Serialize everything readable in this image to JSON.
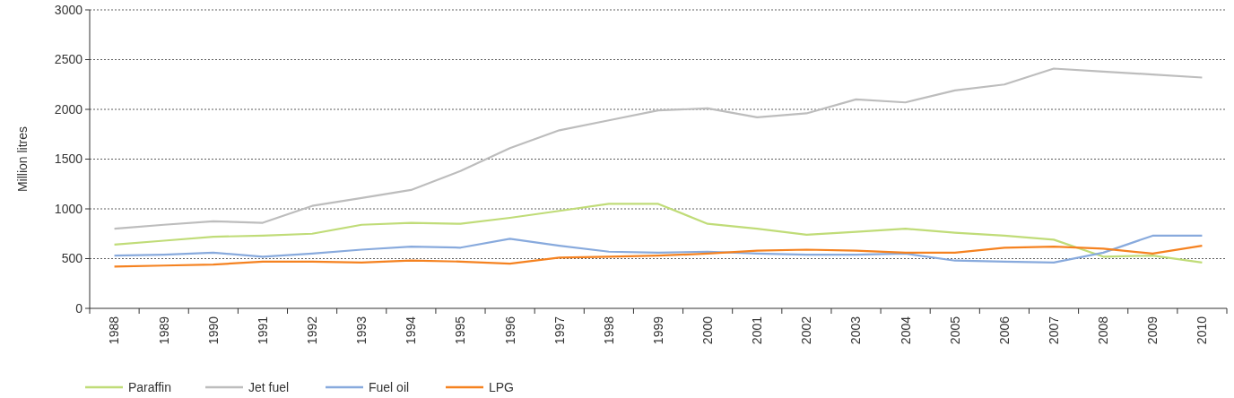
{
  "chart_data": {
    "type": "line",
    "ylabel": "Million litres",
    "categories": [
      "1988",
      "1989",
      "1990",
      "1991",
      "1992",
      "1993",
      "1994",
      "1995",
      "1996",
      "1997",
      "1998",
      "1999",
      "2000",
      "2001",
      "2002",
      "2003",
      "2004",
      "2005",
      "2006",
      "2007",
      "2008",
      "2009",
      "2010"
    ],
    "series": [
      {
        "name": "Paraffin",
        "color": "#c0dc78",
        "values": [
          640,
          680,
          720,
          730,
          750,
          840,
          860,
          850,
          910,
          980,
          1050,
          1050,
          850,
          800,
          740,
          770,
          800,
          760,
          730,
          690,
          520,
          530,
          460
        ]
      },
      {
        "name": "Jet fuel",
        "color": "#bdbdbd",
        "values": [
          800,
          840,
          875,
          860,
          1030,
          1110,
          1190,
          1380,
          1610,
          1790,
          1890,
          1990,
          2010,
          1920,
          1960,
          2100,
          2070,
          2190,
          2250,
          2410,
          2380,
          2350,
          2320
        ]
      },
      {
        "name": "Fuel oil",
        "color": "#88aadd",
        "values": [
          530,
          540,
          560,
          520,
          550,
          590,
          620,
          610,
          700,
          630,
          570,
          560,
          570,
          550,
          540,
          540,
          550,
          480,
          470,
          460,
          560,
          730,
          730
        ]
      },
      {
        "name": "LPG",
        "color": "#f58220",
        "values": [
          420,
          430,
          440,
          470,
          470,
          460,
          480,
          470,
          450,
          510,
          520,
          530,
          550,
          580,
          590,
          580,
          560,
          560,
          610,
          620,
          600,
          550,
          630
        ]
      }
    ],
    "ylim": [
      0,
      3000
    ],
    "yticks": [
      0,
      500,
      1000,
      1500,
      2000,
      2500,
      3000
    ],
    "grid": "y",
    "legend": "bottom left",
    "marker": "none",
    "line_style": "solid"
  }
}
